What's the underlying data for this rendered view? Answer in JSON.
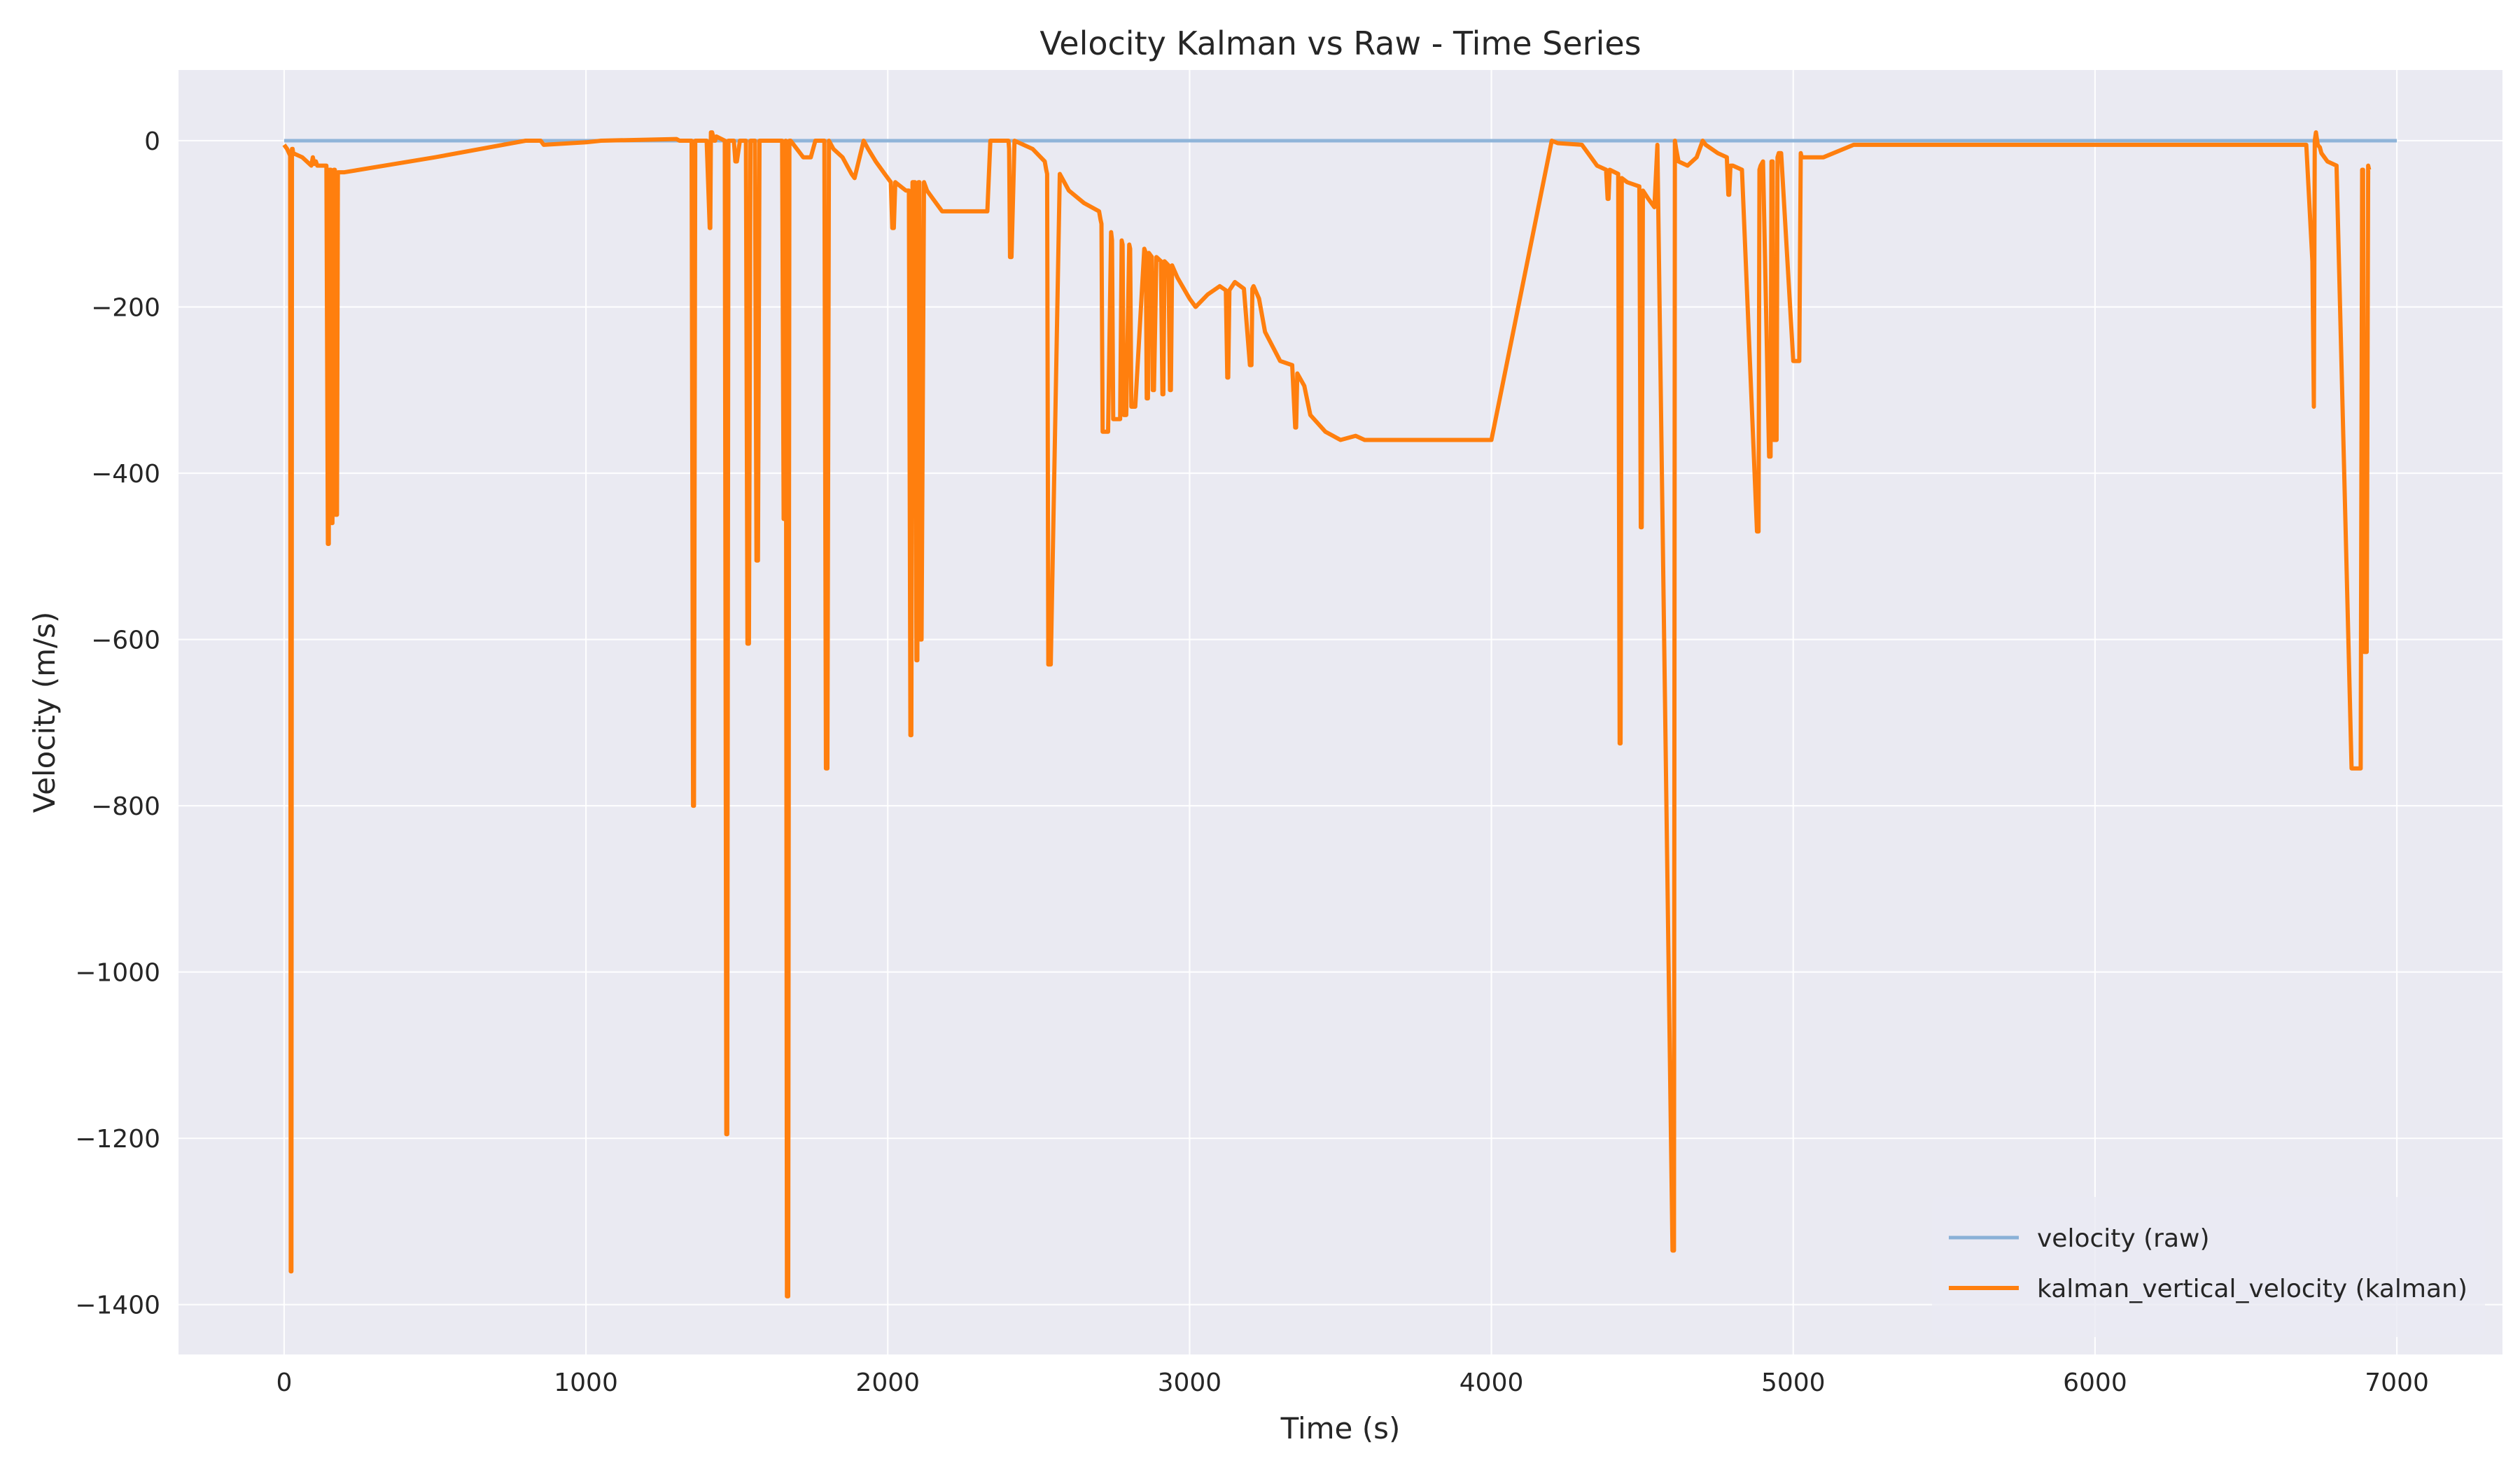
{
  "chart_data": {
    "type": "line",
    "title": "Velocity Kalman vs Raw - Time Series",
    "xlabel": "Time (s)",
    "ylabel": "Velocity (m/s)",
    "xlim": [
      -350,
      7350
    ],
    "ylim": [
      -1460,
      85
    ],
    "xticks": [
      0,
      1000,
      2000,
      3000,
      4000,
      5000,
      6000,
      7000
    ],
    "yticks": [
      0,
      -200,
      -400,
      -600,
      -800,
      -1000,
      -1200,
      -1400
    ],
    "grid": true,
    "legend_position": "bottom-right",
    "series": [
      {
        "name": "velocity (raw)",
        "color": "#8ab1d7",
        "x": [
          0,
          7000
        ],
        "y": [
          0,
          0
        ]
      },
      {
        "name": "kalman_vertical_velocity (kalman)",
        "color": "#ff7f0e",
        "x": [
          0,
          10,
          20,
          22,
          24,
          26,
          28,
          30,
          60,
          90,
          95,
          100,
          105,
          110,
          140,
          145,
          148,
          150,
          155,
          158,
          160,
          165,
          168,
          170,
          175,
          178,
          180,
          200,
          500,
          800,
          850,
          860,
          1000,
          1050,
          1300,
          1310,
          1350,
          1355,
          1358,
          1362,
          1400,
          1410,
          1412,
          1414,
          1418,
          1425,
          1428,
          1432,
          1460,
          1465,
          1468,
          1472,
          1490,
          1495,
          1500,
          1510,
          1530,
          1535,
          1540,
          1545,
          1560,
          1565,
          1570,
          1575,
          1600,
          1650,
          1655,
          1658,
          1662,
          1666,
          1670,
          1674,
          1678,
          1720,
          1745,
          1760,
          1790,
          1795,
          1800,
          1805,
          1820,
          1850,
          1880,
          1890,
          1920,
          1935,
          1960,
          1990,
          2010,
          2015,
          2020,
          2025,
          2060,
          2070,
          2075,
          2078,
          2082,
          2090,
          2095,
          2098,
          2102,
          2105,
          2108,
          2112,
          2120,
          2130,
          2150,
          2180,
          2200,
          2250,
          2300,
          2330,
          2340,
          2400,
          2402,
          2405,
          2410,
          2420,
          2480,
          2520,
          2525,
          2528,
          2532,
          2540,
          2570,
          2600,
          2650,
          2700,
          2705,
          2708,
          2712,
          2730,
          2740,
          2743,
          2747,
          2770,
          2775,
          2778,
          2782,
          2790,
          2800,
          2803,
          2807,
          2820,
          2850,
          2855,
          2858,
          2862,
          2865,
          2875,
          2878,
          2882,
          2890,
          2905,
          2910,
          2913,
          2917,
          2930,
          2935,
          2938,
          2942,
          2960,
          3000,
          3020,
          3060,
          3100,
          3120,
          3125,
          3128,
          3132,
          3150,
          3180,
          3200,
          3205,
          3208,
          3212,
          3230,
          3250,
          3300,
          3340,
          3350,
          3353,
          3357,
          3380,
          3400,
          3450,
          3500,
          3550,
          3580,
          3600,
          3700,
          4000,
          4200,
          4220,
          4300,
          4320,
          4350,
          4380,
          4385,
          4388,
          4392,
          4420,
          4425,
          4428,
          4432,
          4450,
          4490,
          4495,
          4498,
          4502,
          4520,
          4540,
          4550,
          4600,
          4605,
          4608,
          4612,
          4620,
          4650,
          4680,
          4700,
          4710,
          4750,
          4780,
          4785,
          4788,
          4792,
          4800,
          4830,
          4880,
          4885,
          4888,
          4892,
          4900,
          4920,
          4925,
          4928,
          4932,
          4935,
          4945,
          4948,
          4952,
          4960,
          5000,
          5020,
          5025,
          5028,
          5032,
          5050,
          5100,
          5200,
          6000,
          6010,
          6700,
          6720,
          6725,
          6728,
          6732,
          6738,
          6745,
          6750,
          6770,
          6800,
          6850,
          6880,
          6885,
          6888,
          6892,
          6900,
          6905,
          6908,
          6912,
          6950,
          7000
        ]
      }
    ]
  }
}
